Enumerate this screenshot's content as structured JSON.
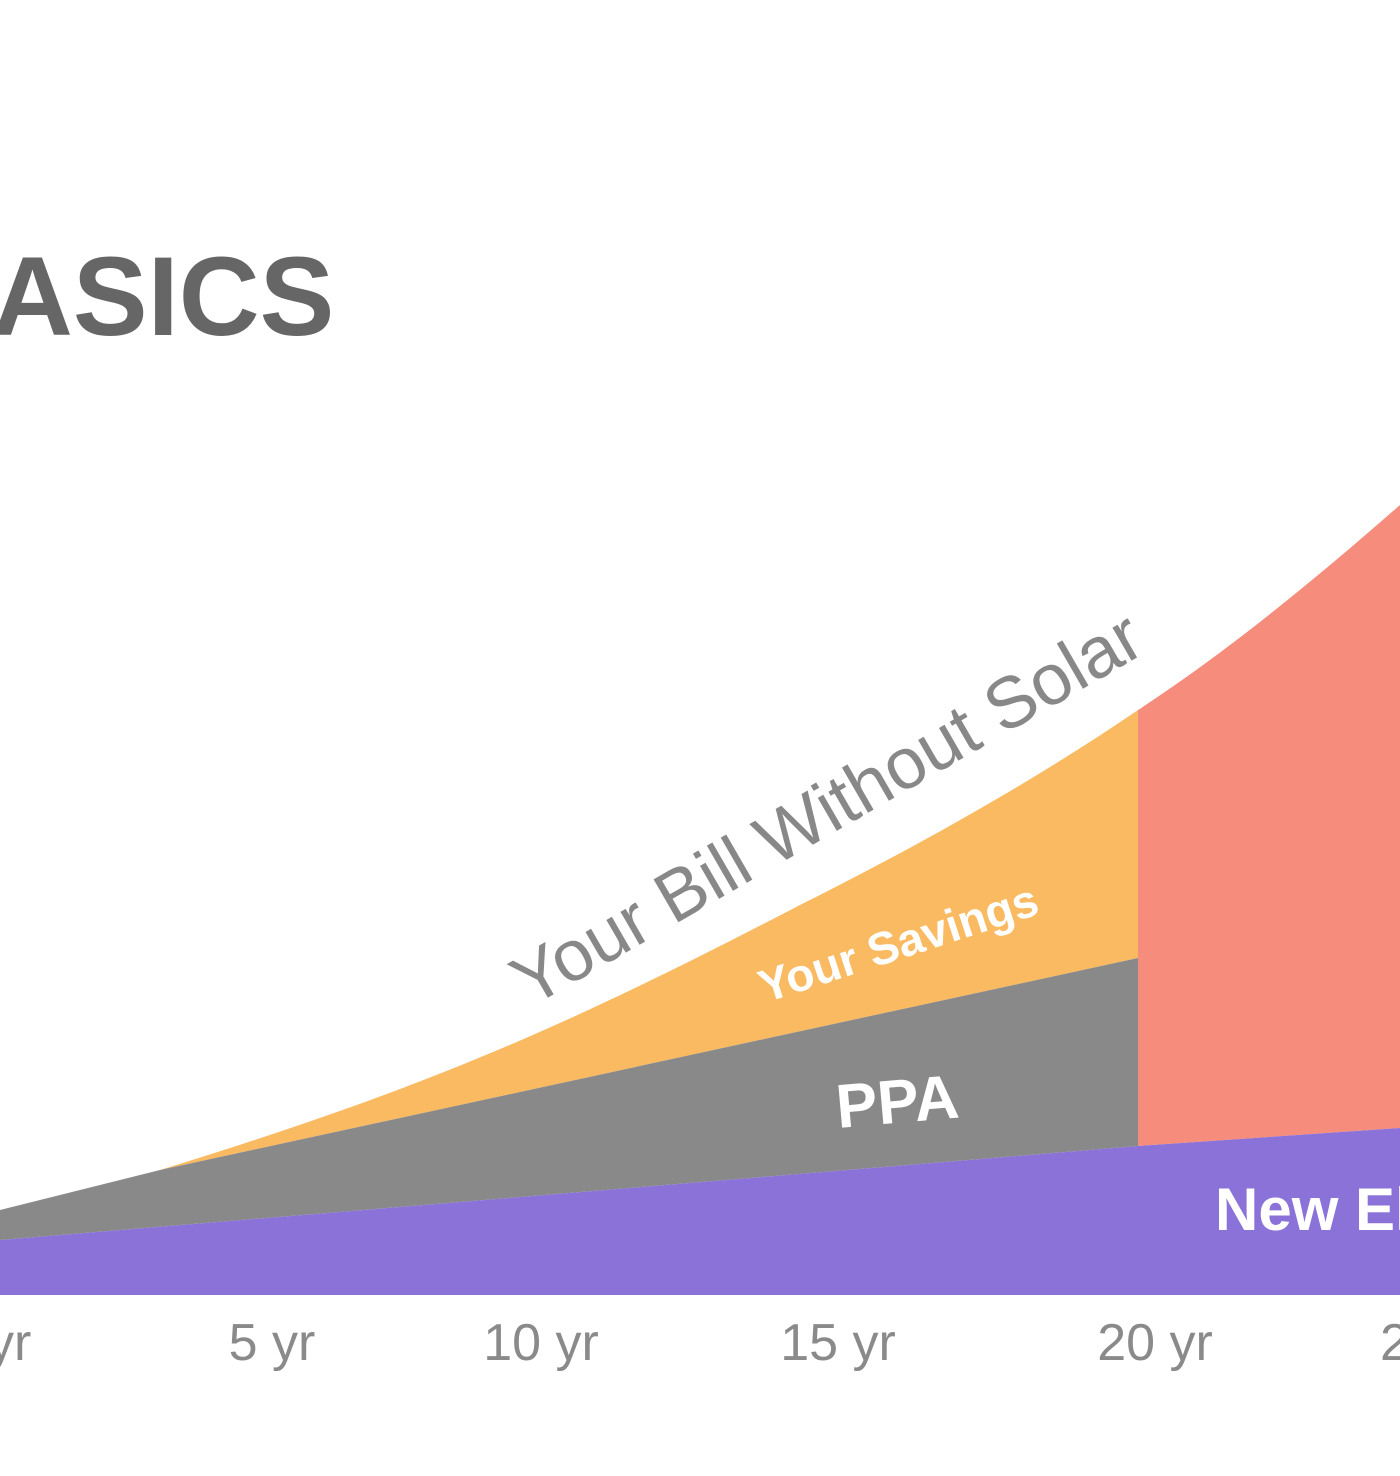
{
  "title": "ASICS",
  "area_labels": {
    "bill_without_solar": "Your Bill Without Solar",
    "savings": "Your Savings",
    "ppa": "PPA",
    "new": "New El"
  },
  "x_labels": [
    "yr",
    "5 yr",
    "10 yr",
    "15 yr",
    "20 yr",
    "2"
  ]
}
